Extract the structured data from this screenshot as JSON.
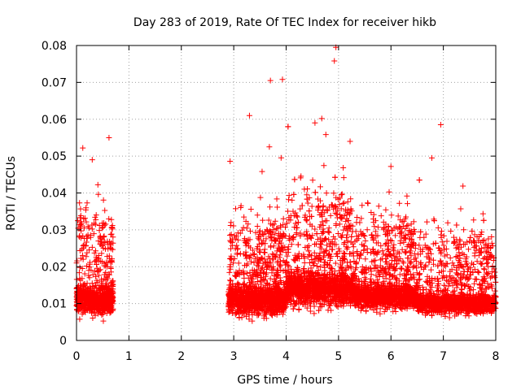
{
  "chart_data": {
    "type": "scatter",
    "title": "Day 283 of 2019, Rate Of TEC Index for receiver hikb",
    "xlabel": "GPS time / hours",
    "ylabel": "ROTI / TECUs",
    "xlim": [
      0,
      8
    ],
    "ylim": [
      0,
      0.08
    ],
    "x_ticks": [
      0,
      1,
      2,
      3,
      4,
      5,
      6,
      7,
      8
    ],
    "x_tick_labels": [
      "0",
      "1",
      "2",
      "3",
      "4",
      "5",
      "6",
      "7",
      "8"
    ],
    "y_ticks": [
      0,
      0.01,
      0.02,
      0.03,
      0.04,
      0.05,
      0.06,
      0.07,
      0.08
    ],
    "y_tick_labels": [
      "0",
      "0.01",
      "0.02",
      "0.03",
      "0.04",
      "0.05",
      "0.06",
      "0.07",
      "0.08"
    ],
    "grid": true,
    "marker": "+",
    "marker_color": "#ff0000",
    "data_gap": [
      0.7,
      2.9
    ],
    "notable_points": [
      {
        "x": 4.95,
        "y": 0.0795
      },
      {
        "x": 4.92,
        "y": 0.0758
      },
      {
        "x": 3.93,
        "y": 0.0708
      },
      {
        "x": 3.7,
        "y": 0.0705
      },
      {
        "x": 6.95,
        "y": 0.0585
      },
      {
        "x": 3.3,
        "y": 0.061
      },
      {
        "x": 4.55,
        "y": 0.059
      },
      {
        "x": 4.68,
        "y": 0.0602
      },
      {
        "x": 0.62,
        "y": 0.055
      },
      {
        "x": 0.12,
        "y": 0.0522
      },
      {
        "x": 3.68,
        "y": 0.0525
      },
      {
        "x": 5.22,
        "y": 0.054
      },
      {
        "x": 6.78,
        "y": 0.0495
      },
      {
        "x": 0.3,
        "y": 0.049
      }
    ]
  }
}
